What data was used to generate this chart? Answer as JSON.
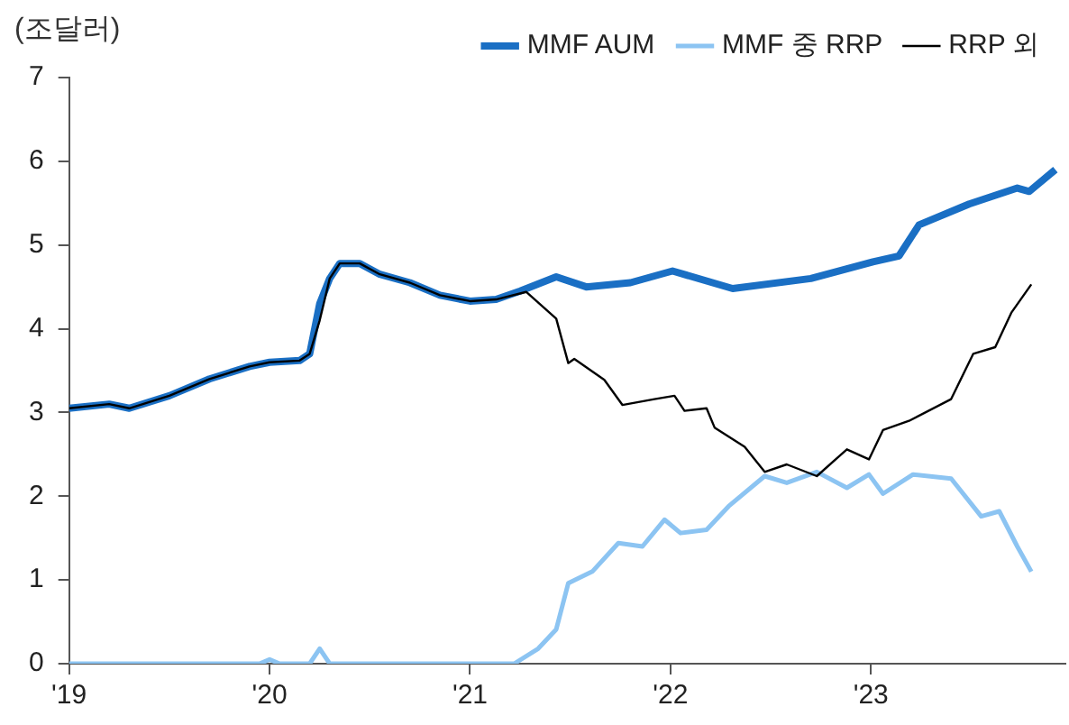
{
  "chart_data": {
    "type": "line",
    "ylabel": "(조달러)",
    "xlim": [
      2019,
      2023.97
    ],
    "xticks": [
      {
        "value": 2019,
        "label": "'19"
      },
      {
        "value": 2020,
        "label": "'20"
      },
      {
        "value": 2021,
        "label": "'21"
      },
      {
        "value": 2022,
        "label": "'22"
      },
      {
        "value": 2023,
        "label": "'23"
      }
    ],
    "ylim": [
      0,
      7
    ],
    "yticks": [
      0,
      1,
      2,
      3,
      4,
      5,
      6,
      7
    ],
    "grid": false,
    "legend": "top right",
    "marker": "none",
    "line_style": "solid",
    "series": [
      {
        "name": "MMF AUM",
        "color": "#1a6fc4",
        "x": [
          2019,
          2019.2,
          2019.3,
          2019.5,
          2019.7,
          2019.9,
          2020,
          2020.15,
          2020.2,
          2020.25,
          2020.3,
          2020.35,
          2020.45,
          2020.55,
          2020.7,
          2020.85,
          2021,
          2021.13,
          2021.25,
          2021.43,
          2021.58,
          2021.8,
          2022.01,
          2022.31,
          2022.7,
          2023.01,
          2023.14,
          2023.24,
          2023.49,
          2023.73,
          2023.79,
          2023.92
        ],
        "values": [
          3.05,
          3.1,
          3.05,
          3.2,
          3.4,
          3.55,
          3.6,
          3.62,
          3.7,
          4.3,
          4.6,
          4.78,
          4.78,
          4.65,
          4.55,
          4.4,
          4.33,
          4.35,
          4.45,
          4.62,
          4.5,
          4.55,
          4.69,
          4.48,
          4.6,
          4.8,
          4.87,
          5.24,
          5.49,
          5.68,
          5.64,
          5.9
        ]
      },
      {
        "name": "MMF 중 RRP",
        "color": "#8cc4f2",
        "x": [
          2019,
          2019.95,
          2020,
          2020.05,
          2020.2,
          2020.25,
          2020.3,
          2021.22,
          2021.34,
          2021.43,
          2021.49,
          2021.61,
          2021.74,
          2021.86,
          2021.97,
          2022.05,
          2022.18,
          2022.29,
          2022.47,
          2022.58,
          2022.73,
          2022.88,
          2022.99,
          2023.06,
          2023.21,
          2023.4,
          2023.55,
          2023.64,
          2023.73,
          2023.8
        ],
        "values": [
          0,
          0,
          0.05,
          0,
          0,
          0.18,
          0,
          0,
          0.18,
          0.41,
          0.96,
          1.1,
          1.44,
          1.4,
          1.72,
          1.56,
          1.6,
          1.88,
          2.24,
          2.16,
          2.29,
          2.1,
          2.26,
          2.03,
          2.26,
          2.21,
          1.76,
          1.82,
          1.4,
          1.1
        ]
      },
      {
        "name": "RRP 외",
        "color": "#000000",
        "x": [
          2019,
          2019.2,
          2019.3,
          2019.5,
          2019.7,
          2019.9,
          2020,
          2020.15,
          2020.2,
          2020.25,
          2020.3,
          2020.35,
          2020.45,
          2020.55,
          2020.7,
          2020.85,
          2021,
          2021.13,
          2021.28,
          2021.43,
          2021.49,
          2021.52,
          2021.67,
          2021.76,
          2021.92,
          2022.02,
          2022.07,
          2022.18,
          2022.22,
          2022.37,
          2022.47,
          2022.58,
          2022.73,
          2022.88,
          2022.99,
          2023.06,
          2023.19,
          2023.4,
          2023.51,
          2023.62,
          2023.7,
          2023.8
        ],
        "values": [
          3.05,
          3.1,
          3.05,
          3.2,
          3.4,
          3.55,
          3.6,
          3.62,
          3.7,
          4.1,
          4.6,
          4.78,
          4.78,
          4.65,
          4.55,
          4.4,
          4.33,
          4.35,
          4.44,
          4.12,
          3.59,
          3.64,
          3.39,
          3.09,
          3.16,
          3.2,
          3.02,
          3.05,
          2.82,
          2.59,
          2.29,
          2.38,
          2.24,
          2.56,
          2.44,
          2.79,
          2.9,
          3.16,
          3.7,
          3.78,
          4.19,
          4.53
        ]
      }
    ]
  }
}
